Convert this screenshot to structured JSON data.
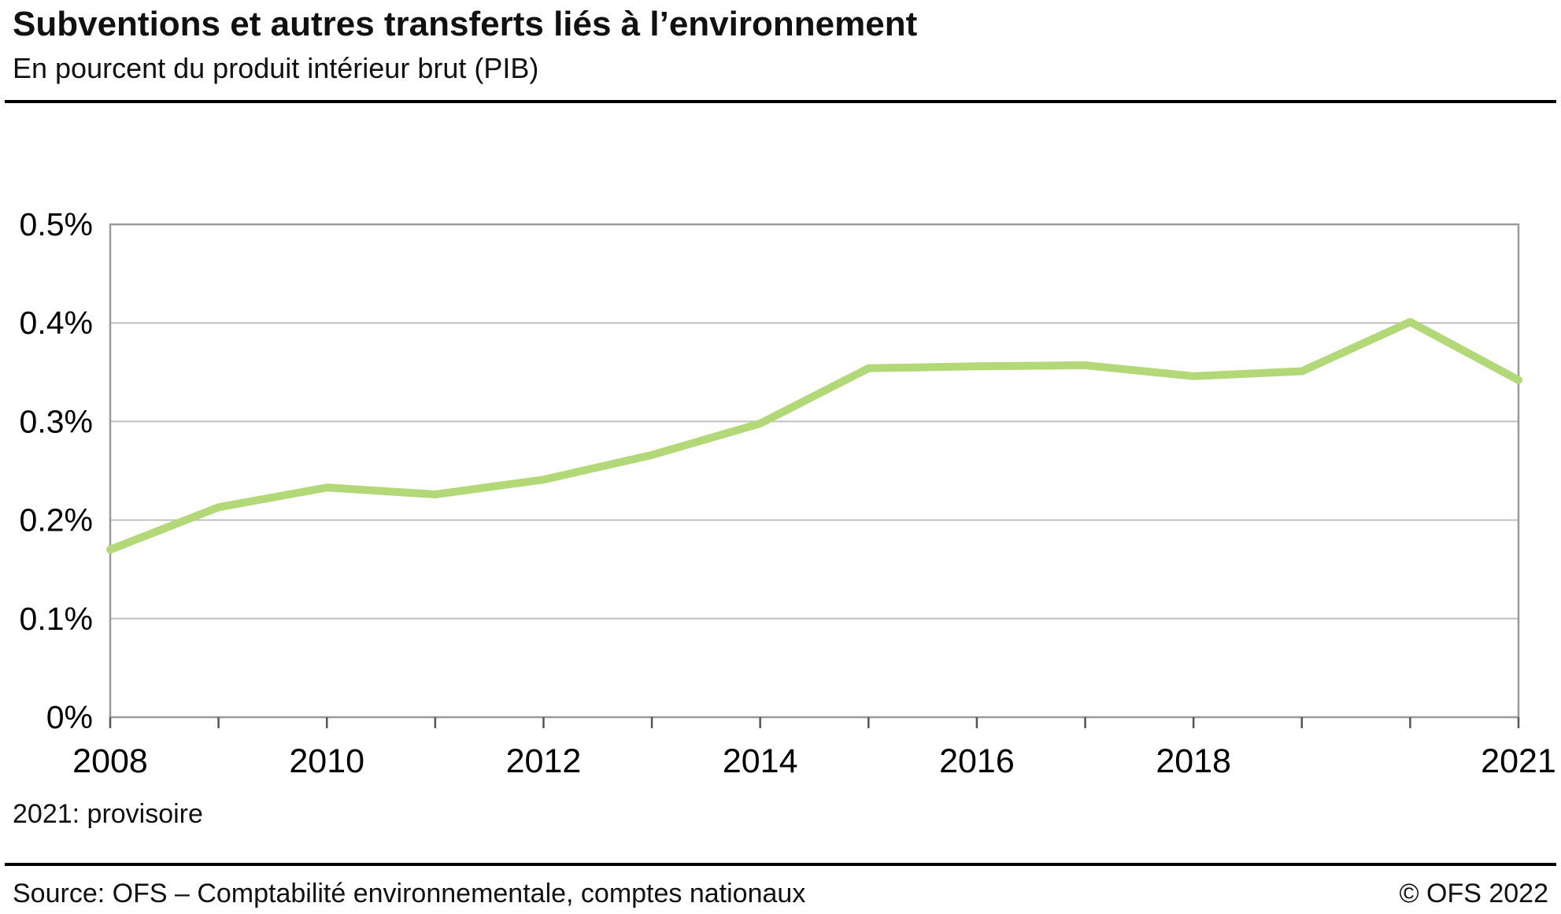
{
  "header": {
    "title": "Subventions et autres transferts liés à l’environnement",
    "subtitle": "En pourcent du produit intérieur brut (PIB)"
  },
  "chart_data": {
    "type": "line",
    "x": [
      2008,
      2009,
      2010,
      2011,
      2012,
      2013,
      2014,
      2015,
      2016,
      2017,
      2018,
      2019,
      2020,
      2021
    ],
    "values": [
      0.17,
      0.213,
      0.233,
      0.226,
      0.241,
      0.266,
      0.298,
      0.354,
      0.356,
      0.357,
      0.346,
      0.351,
      0.401,
      0.342
    ],
    "unit": "% du PIB",
    "ylim": [
      0,
      0.5
    ],
    "yticks": [
      0,
      0.1,
      0.2,
      0.3,
      0.4,
      0.5
    ],
    "ytick_labels": [
      "0%",
      "0.1%",
      "0.2%",
      "0.3%",
      "0.4%",
      "0.5%"
    ],
    "xtick_years": [
      2008,
      2010,
      2012,
      2014,
      2016,
      2018,
      2021
    ],
    "xtick_labels": [
      "2008",
      "2010",
      "2012",
      "2014",
      "2016",
      "2018",
      "2021"
    ],
    "grid": true,
    "legend": "none",
    "line_color": "#b2d878",
    "grid_color": "#c0c0c0",
    "frame_color": "#9a9a9a"
  },
  "footnote": "2021: provisoire",
  "footer": {
    "source": "Source: OFS – Comptabilité environnementale, comptes nationaux",
    "copyright": "© OFS 2022"
  }
}
